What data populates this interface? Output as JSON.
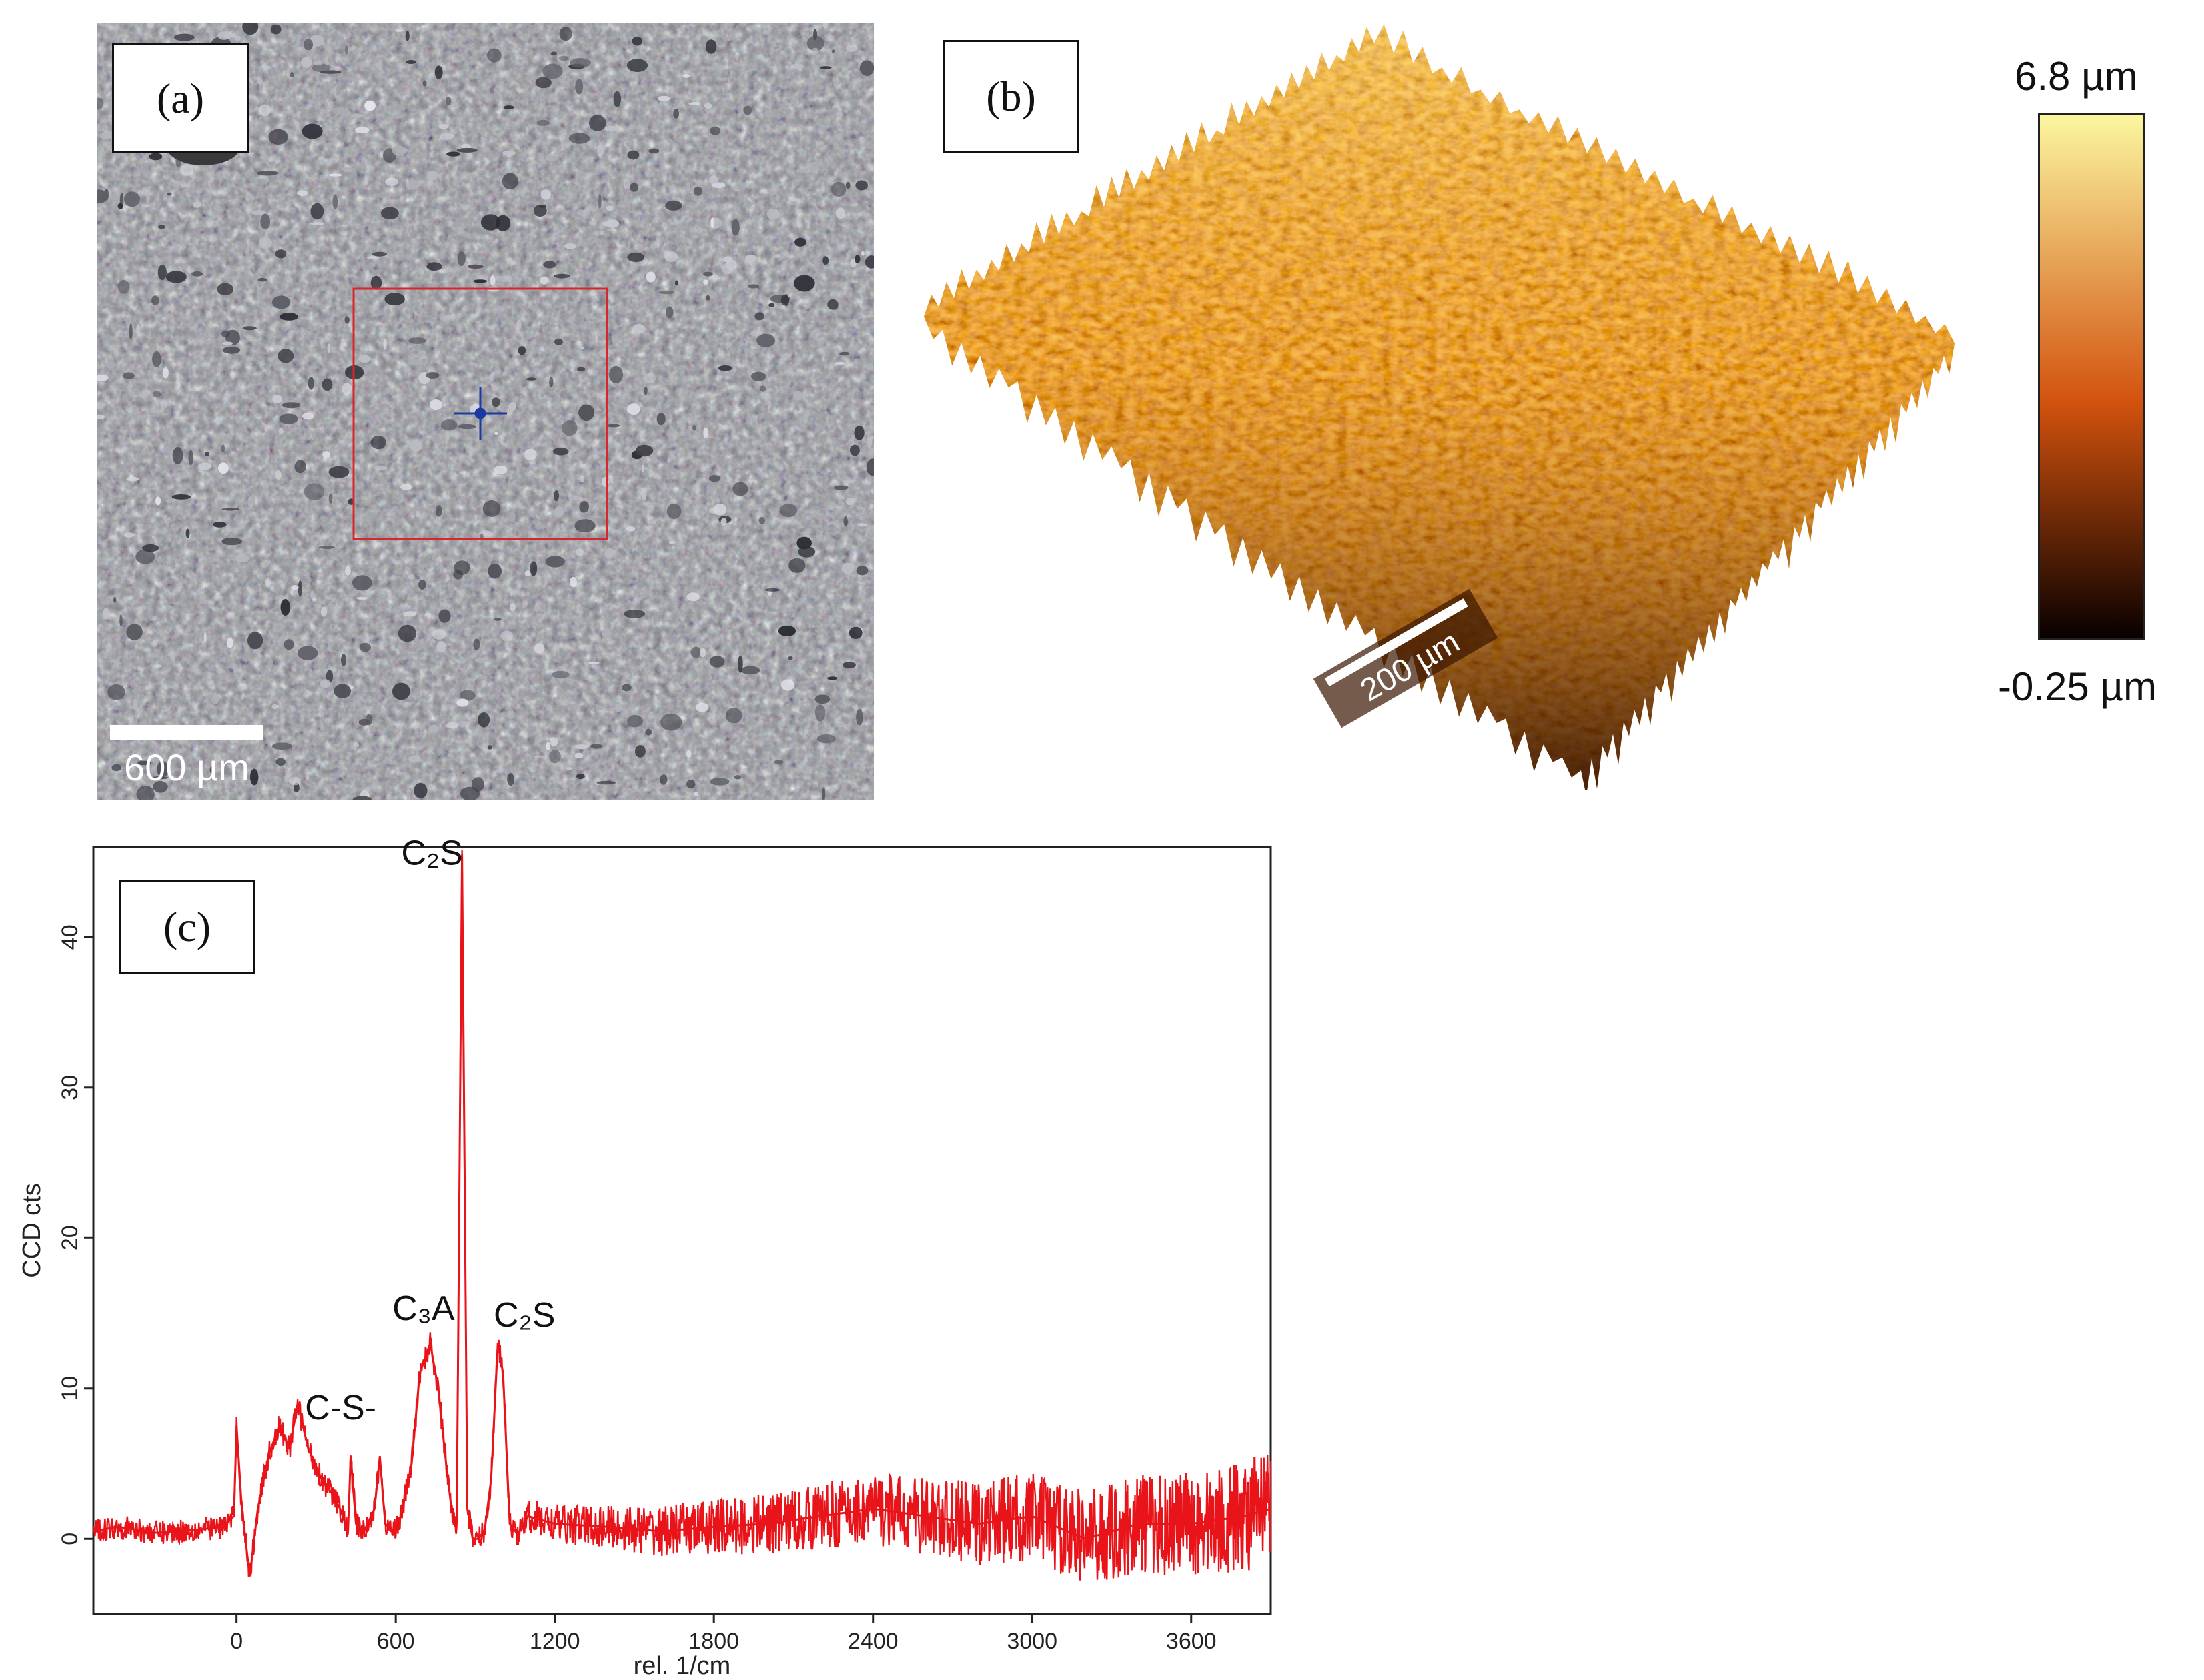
{
  "panels": {
    "a": {
      "label": "(a)",
      "scalebar": "600 µm"
    },
    "b": {
      "label": "(b)",
      "scalebar": "200 µm",
      "colorbar_max": "6.8 µm",
      "colorbar_min": "-0.25 µm"
    },
    "c": {
      "label": "(c)"
    }
  },
  "colors": {
    "spectrum_line": "#e8141a",
    "roi_box": "#d8262c",
    "crosshair": "#1a3aa0",
    "colorbar_top": "#fbf6a0",
    "colorbar_mid": "#d2520e",
    "colorbar_bottom": "#080000"
  },
  "chart_data": {
    "type": "line",
    "xlabel": "rel. 1/cm",
    "ylabel": "CCD cts",
    "xlim": [
      -540,
      3900
    ],
    "ylim": [
      -5,
      46
    ],
    "xticks": [
      0,
      600,
      1200,
      1800,
      2400,
      3000,
      3600
    ],
    "yticks": [
      0,
      10,
      20,
      30,
      40
    ],
    "series": [
      {
        "points": [
          [
            -540,
            0.5
          ],
          [
            -450,
            0.8
          ],
          [
            -300,
            0.4
          ],
          [
            -150,
            0.6
          ],
          [
            -50,
            0.8
          ],
          [
            -10,
            1.5
          ],
          [
            0,
            7.5
          ],
          [
            20,
            2
          ],
          [
            50,
            -2.5
          ],
          [
            80,
            2
          ],
          [
            120,
            5.5
          ],
          [
            160,
            7.5
          ],
          [
            200,
            6
          ],
          [
            230,
            9
          ],
          [
            270,
            6
          ],
          [
            320,
            4
          ],
          [
            360,
            3
          ],
          [
            390,
            2
          ],
          [
            420,
            0.5
          ],
          [
            430,
            5.5
          ],
          [
            450,
            1
          ],
          [
            480,
            0.5
          ],
          [
            520,
            2
          ],
          [
            540,
            5.5
          ],
          [
            560,
            1
          ],
          [
            590,
            0.5
          ],
          [
            620,
            1.5
          ],
          [
            660,
            5
          ],
          [
            690,
            11
          ],
          [
            730,
            13
          ],
          [
            760,
            10
          ],
          [
            790,
            5
          ],
          [
            810,
            2
          ],
          [
            830,
            1
          ],
          [
            850,
            45.5
          ],
          [
            870,
            2
          ],
          [
            890,
            0
          ],
          [
            910,
            0
          ],
          [
            935,
            0.5
          ],
          [
            960,
            4
          ],
          [
            985,
            13
          ],
          [
            1005,
            11
          ],
          [
            1030,
            1
          ],
          [
            1060,
            0.3
          ],
          [
            1100,
            1.5
          ],
          [
            1200,
            1
          ],
          [
            1400,
            0.8
          ],
          [
            1600,
            0.5
          ],
          [
            1800,
            0.8
          ],
          [
            2000,
            1
          ],
          [
            2200,
            1.5
          ],
          [
            2400,
            2
          ],
          [
            2600,
            1.5
          ],
          [
            2800,
            1
          ],
          [
            3000,
            1.5
          ],
          [
            3200,
            0
          ],
          [
            3400,
            1
          ],
          [
            3600,
            1
          ],
          [
            3800,
            1.5
          ],
          [
            3900,
            2
          ]
        ]
      }
    ],
    "annotations": [
      {
        "text": "C₂S",
        "x": 850,
        "y": 45.5
      },
      {
        "text": "C₃A",
        "x": 730,
        "y": 13
      },
      {
        "text": "C₂S",
        "x": 985,
        "y": 13
      },
      {
        "text": "C-S-",
        "x": 430,
        "y": 5.5
      }
    ]
  }
}
